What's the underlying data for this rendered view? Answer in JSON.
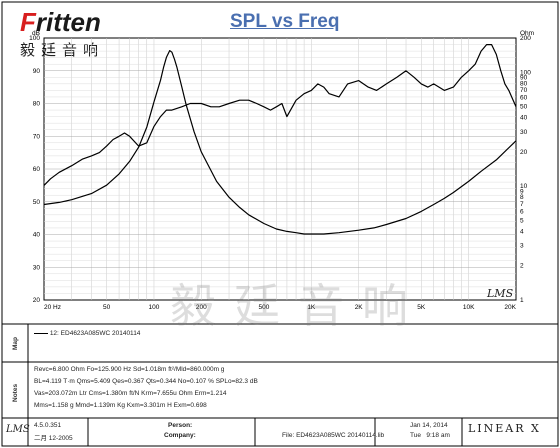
{
  "brand": {
    "logo_text_red": "F",
    "logo_text": "ritten",
    "logo_sub": "毅廷音响",
    "watermark": "毅廷音响"
  },
  "chart_data": {
    "type": "line",
    "title": "SPL vs Freq",
    "x_scale": "log",
    "xlim": [
      20,
      20000
    ],
    "x_ticks": [
      {
        "v": 20,
        "label": "20 Hz"
      },
      {
        "v": 50,
        "label": "50"
      },
      {
        "v": 100,
        "label": "100"
      },
      {
        "v": 200,
        "label": "200"
      },
      {
        "v": 500,
        "label": "500"
      },
      {
        "v": 1000,
        "label": "1K"
      },
      {
        "v": 2000,
        "label": "2K"
      },
      {
        "v": 5000,
        "label": "5K"
      },
      {
        "v": 10000,
        "label": "10K"
      },
      {
        "v": 20000,
        "label": "20K"
      }
    ],
    "y_left": {
      "min": 20,
      "max": 100,
      "ticks": [
        "20",
        "30",
        "40",
        "50",
        "60",
        "70",
        "80",
        "90",
        "100",
        "dB"
      ]
    },
    "y_right": {
      "scale": "log",
      "min": 1,
      "max": 200,
      "unit": "Ohm",
      "ticks": [
        "200",
        "100",
        "90",
        "80",
        "70",
        "60",
        "50",
        "40",
        "30",
        "20",
        "10",
        "9",
        "8",
        "7",
        "6",
        "5",
        "4",
        "3",
        "2",
        "1"
      ]
    },
    "grid": true,
    "series": [
      {
        "axis": "left",
        "color": "#000000",
        "x": [
          20,
          22,
          25,
          30,
          35,
          40,
          45,
          50,
          55,
          60,
          65,
          70,
          80,
          90,
          100,
          110,
          120,
          130,
          150,
          170,
          200,
          230,
          260,
          300,
          350,
          400,
          450,
          500,
          550,
          600,
          650,
          700,
          800,
          900,
          1000,
          1100,
          1200,
          1300,
          1500,
          1700,
          2000,
          2300,
          2600,
          3000,
          3500,
          4000,
          4500,
          5000,
          5500,
          6000,
          7000,
          8000,
          9000,
          10000,
          11000,
          12000,
          13000,
          14000,
          15000,
          16000,
          17000,
          18000,
          20000
        ],
        "y": [
          55,
          57,
          59,
          61,
          63,
          64,
          65,
          67,
          69,
          70,
          71,
          70,
          67,
          68,
          73,
          76,
          78,
          78,
          79,
          80,
          80,
          79,
          79,
          80,
          81,
          81,
          80,
          79,
          78,
          79,
          80,
          76,
          81,
          83,
          84,
          86,
          85,
          83,
          82,
          86,
          87,
          85,
          84,
          86,
          88,
          90,
          88,
          86,
          85,
          86,
          84,
          85,
          88,
          90,
          92,
          96,
          98,
          98,
          95,
          90,
          86,
          84,
          79
        ]
      },
      {
        "axis": "right",
        "color": "#000000",
        "x": [
          20,
          25,
          30,
          40,
          50,
          60,
          70,
          80,
          90,
          100,
          110,
          115,
          120,
          125.9,
          130,
          135,
          140,
          150,
          160,
          180,
          200,
          250,
          300,
          350,
          400,
          500,
          600,
          700,
          800,
          900,
          1000,
          1200,
          1500,
          2000,
          2500,
          3000,
          4000,
          5000,
          6000,
          7000,
          8000,
          10000,
          12000,
          15000,
          20000
        ],
        "y": [
          6.9,
          7.2,
          7.6,
          8.6,
          10.2,
          12.8,
          16.5,
          22,
          33,
          55,
          85,
          110,
          135,
          155,
          150,
          130,
          110,
          75,
          52,
          30,
          20,
          11,
          8,
          6.5,
          5.6,
          4.7,
          4.2,
          4.0,
          3.9,
          3.8,
          3.8,
          3.8,
          3.9,
          4.1,
          4.3,
          4.6,
          5.2,
          6.0,
          6.9,
          7.8,
          8.8,
          11,
          13.5,
          17,
          25
        ]
      }
    ]
  },
  "map": {
    "label": "Map",
    "legend_index": "12:",
    "legend_name": "ED4623A085WC",
    "legend_date": "20140114"
  },
  "notes": {
    "label": "Notes",
    "lines": [
      "Revc=6.800 Ohm  Fo=125.900 Hz  Sd=1.018m ft²/Mld=860.000m g",
      "BL=4.119 T·m  Qms=5.409  Qes=0.367  Qts=0.344  No=0.107 %  SPLo=82.3 dB",
      "Vas=203.072m Ltr  Cms=1.380m ft/N  Krm=7.655u Ohm  Erm=1.214",
      "Mms=1.158 g  Mmd=1.139m Kg  Kxm=3.301m H  Exm=0.698"
    ]
  },
  "footer": {
    "version": "4.5.0.351",
    "version_date": "二月 12-2005",
    "person_label": "Person:",
    "company_label": "Company:",
    "file_label": "File: ED4623A085WC  20140114.lib",
    "date": "Jan 14, 2014",
    "time_label": "Tue",
    "time": "9:18 am",
    "lms_mark": "LMS",
    "linearx": "LINEAR X",
    "chart_mark": "LMS"
  }
}
